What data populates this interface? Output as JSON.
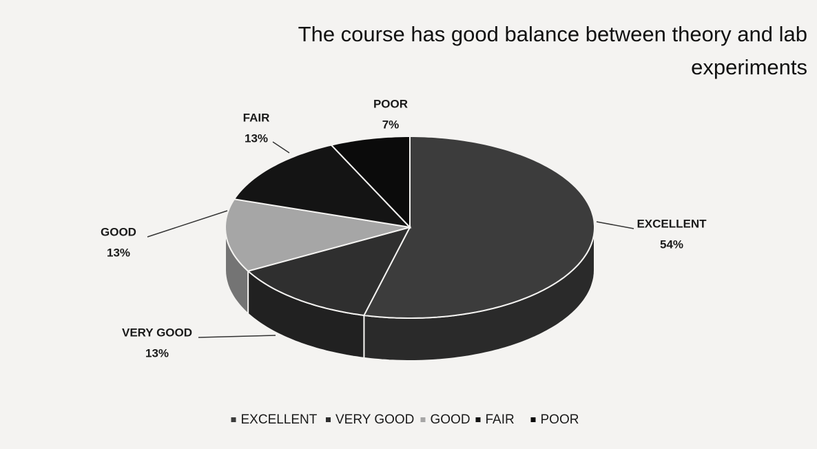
{
  "chart_data": {
    "type": "pie",
    "title": "The course has good balance between theory and lab experiments",
    "categories": [
      "EXCELLENT",
      "VERY GOOD",
      "GOOD",
      "FAIR",
      "POOR"
    ],
    "values": [
      54,
      13,
      13,
      13,
      7
    ],
    "value_labels": [
      "54%",
      "13%",
      "13%",
      "13%",
      "7%"
    ],
    "colors": [
      "#3c3c3c",
      "#2f2f2f",
      "#a6a6a6",
      "#141414",
      "#0b0b0b"
    ],
    "legend": "bottom"
  }
}
